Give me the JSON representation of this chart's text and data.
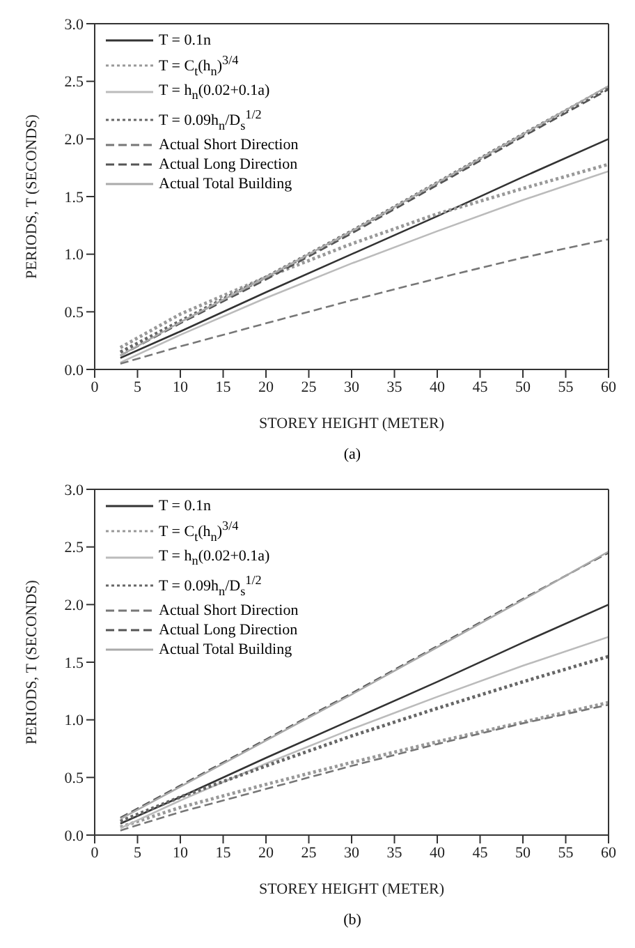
{
  "chart_data": [
    {
      "type": "line",
      "xlabel": "STOREY HEIGHT (METER)",
      "ylabel": "PERIODS, T (SECONDS)",
      "annotations": [
        "(a)"
      ],
      "x": [
        3,
        10,
        20,
        30,
        40,
        50,
        60
      ],
      "xlim": [
        0,
        60
      ],
      "xticks": [
        0,
        5,
        10,
        15,
        20,
        25,
        30,
        35,
        40,
        45,
        50,
        55,
        60
      ],
      "ylim": [
        0,
        3
      ],
      "yticks": [
        {
          "value": 0,
          "label": "0.0"
        },
        0.5,
        {
          "value": 1,
          "label": "1.0"
        },
        1.5,
        {
          "value": 2,
          "label": "2.0"
        },
        2.5,
        {
          "value": 3,
          "label": "3.0"
        }
      ],
      "grid": false,
      "legend": "top left",
      "marker": "none",
      "series": [
        {
          "name": "T = 0.1n",
          "color": "#333333",
          "line_style": "solid",
          "values": [
            0.1,
            0.33,
            0.67,
            1.0,
            1.33,
            1.67,
            2.0
          ]
        },
        {
          "name": "T = C$_{t}$(h$_{n}$)$^{3/4}$",
          "color": "#999999",
          "line_style": "dotted",
          "values": [
            0.19,
            0.48,
            0.8,
            1.09,
            1.35,
            1.57,
            1.78
          ]
        },
        {
          "name": "T = h$_{n}$(0.02+0.1a)",
          "color": "#bbbbbb",
          "line_style": "solid",
          "values": [
            0.06,
            0.3,
            0.62,
            0.92,
            1.2,
            1.47,
            1.72
          ]
        },
        {
          "name": "T = 0.09h$_{n}$/D$_{s}$$^{1/2}$",
          "color": "#666666",
          "line_style": "dotted",
          "values": [
            0.15,
            0.42,
            0.8,
            1.2,
            1.62,
            2.04,
            2.45
          ]
        },
        {
          "name": "Actual Short Direction",
          "color": "#777777",
          "line_style": "dashed",
          "values": [
            0.05,
            0.2,
            0.4,
            0.6,
            0.79,
            0.97,
            1.13
          ]
        },
        {
          "name": "Actual Long Direction",
          "color": "#555555",
          "line_style": "dashed",
          "values": [
            0.12,
            0.4,
            0.78,
            1.18,
            1.6,
            2.02,
            2.43
          ]
        },
        {
          "name": "Actual Total Building",
          "color": "#aaaaaa",
          "line_style": "solid",
          "values": [
            0.12,
            0.41,
            0.8,
            1.2,
            1.62,
            2.04,
            2.46
          ]
        }
      ]
    },
    {
      "type": "line",
      "xlabel": "STOREY HEIGHT (METER)",
      "ylabel": "PERIODS, T (SECONDS)",
      "annotations": [
        "(b)"
      ],
      "x": [
        3,
        10,
        20,
        30,
        40,
        50,
        60
      ],
      "xlim": [
        0,
        60
      ],
      "xticks": [
        0,
        5,
        10,
        15,
        20,
        25,
        30,
        35,
        40,
        45,
        50,
        55,
        60
      ],
      "ylim": [
        0,
        3
      ],
      "yticks": [
        {
          "value": 0,
          "label": "0.0"
        },
        0.5,
        {
          "value": 1,
          "label": "1.0"
        },
        1.5,
        {
          "value": 2,
          "label": "2.0"
        },
        2.5,
        {
          "value": 3,
          "label": "3.0"
        }
      ],
      "grid": false,
      "legend": "top left",
      "marker": "none",
      "series": [
        {
          "name": "T = 0.1n",
          "color": "#333333",
          "line_style": "solid",
          "values": [
            0.1,
            0.33,
            0.67,
            1.0,
            1.33,
            1.67,
            2.0
          ]
        },
        {
          "name": "T = C$_{t}$(h$_{n}$)$^{3/4}$",
          "color": "#999999",
          "line_style": "dotted",
          "values": [
            0.07,
            0.24,
            0.44,
            0.63,
            0.81,
            0.98,
            1.15
          ]
        },
        {
          "name": "T = h$_{n}$(0.02+0.1a)",
          "color": "#bbbbbb",
          "line_style": "solid",
          "values": [
            0.06,
            0.3,
            0.62,
            0.92,
            1.2,
            1.47,
            1.72
          ]
        },
        {
          "name": "T = 0.09h$_{n}$/D$_{s}$$^{1/2}$",
          "color": "#666666",
          "line_style": "dotted",
          "values": [
            0.12,
            0.33,
            0.6,
            0.86,
            1.1,
            1.33,
            1.55
          ]
        },
        {
          "name": "Actual Short Direction",
          "color": "#777777",
          "line_style": "dashed",
          "values": [
            0.04,
            0.2,
            0.4,
            0.6,
            0.79,
            0.97,
            1.13
          ]
        },
        {
          "name": "Actual Long Direction",
          "color": "#555555",
          "line_style": "dashed",
          "values": [
            0.15,
            0.43,
            0.83,
            1.23,
            1.64,
            2.05,
            2.45
          ]
        },
        {
          "name": "Actual Total Building",
          "color": "#aaaaaa",
          "line_style": "solid",
          "values": [
            0.14,
            0.42,
            0.82,
            1.22,
            1.63,
            2.04,
            2.46
          ]
        }
      ]
    }
  ]
}
